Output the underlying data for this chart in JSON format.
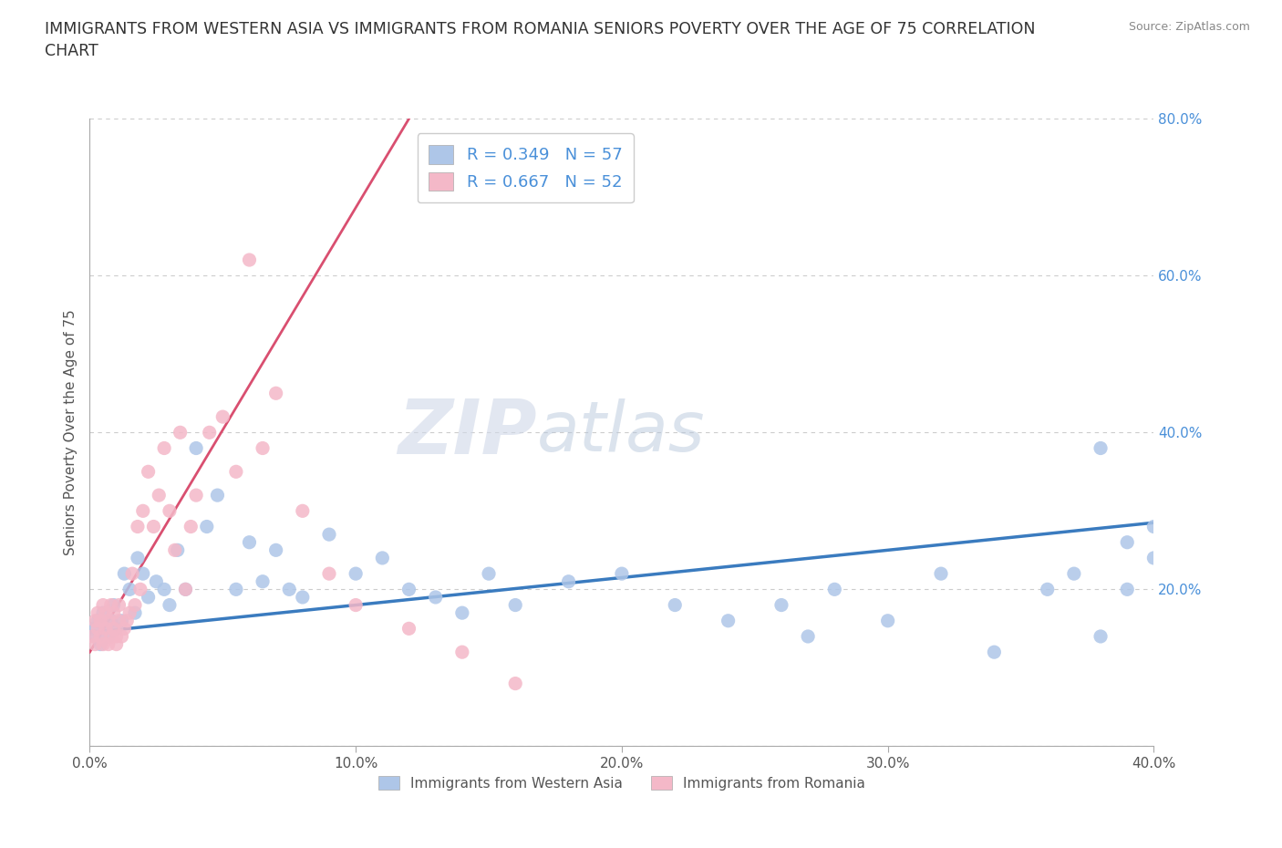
{
  "title": "IMMIGRANTS FROM WESTERN ASIA VS IMMIGRANTS FROM ROMANIA SENIORS POVERTY OVER THE AGE OF 75 CORRELATION\nCHART",
  "ylabel": "Seniors Poverty Over the Age of 75",
  "source": "Source: ZipAtlas.com",
  "watermark_zip": "ZIP",
  "watermark_atlas": "atlas",
  "r_western_asia": 0.349,
  "n_western_asia": 57,
  "r_romania": 0.667,
  "n_romania": 52,
  "xlim": [
    0.0,
    0.4
  ],
  "ylim": [
    0.0,
    0.8
  ],
  "xticks": [
    0.0,
    0.1,
    0.2,
    0.3,
    0.4
  ],
  "xtick_labels": [
    "0.0%",
    "10.0%",
    "20.0%",
    "30.0%",
    "40.0%"
  ],
  "yticks": [
    0.0,
    0.2,
    0.4,
    0.6,
    0.8
  ],
  "ytick_labels": [
    "",
    "20.0%",
    "40.0%",
    "60.0%",
    "80.0%"
  ],
  "color_western_asia": "#aec6e8",
  "color_romania": "#f4b8c8",
  "line_color_western_asia": "#3a7bbf",
  "line_color_romania": "#d94f70",
  "background_color": "#ffffff",
  "grid_color": "#cccccc",
  "tick_color": "#4a90d9",
  "wa_x": [
    0.001,
    0.002,
    0.003,
    0.004,
    0.005,
    0.006,
    0.007,
    0.008,
    0.009,
    0.01,
    0.012,
    0.013,
    0.015,
    0.017,
    0.018,
    0.02,
    0.022,
    0.025,
    0.028,
    0.03,
    0.033,
    0.036,
    0.04,
    0.044,
    0.048,
    0.055,
    0.06,
    0.065,
    0.07,
    0.075,
    0.08,
    0.09,
    0.1,
    0.11,
    0.12,
    0.13,
    0.14,
    0.15,
    0.16,
    0.18,
    0.2,
    0.22,
    0.24,
    0.26,
    0.27,
    0.28,
    0.3,
    0.32,
    0.34,
    0.36,
    0.37,
    0.38,
    0.39,
    0.4,
    0.4,
    0.39,
    0.38
  ],
  "wa_y": [
    0.15,
    0.14,
    0.16,
    0.13,
    0.17,
    0.15,
    0.14,
    0.16,
    0.18,
    0.15,
    0.16,
    0.22,
    0.2,
    0.17,
    0.24,
    0.22,
    0.19,
    0.21,
    0.2,
    0.18,
    0.25,
    0.2,
    0.38,
    0.28,
    0.32,
    0.2,
    0.26,
    0.21,
    0.25,
    0.2,
    0.19,
    0.27,
    0.22,
    0.24,
    0.2,
    0.19,
    0.17,
    0.22,
    0.18,
    0.21,
    0.22,
    0.18,
    0.16,
    0.18,
    0.14,
    0.2,
    0.16,
    0.22,
    0.12,
    0.2,
    0.22,
    0.14,
    0.26,
    0.28,
    0.24,
    0.2,
    0.38
  ],
  "ro_x": [
    0.001,
    0.002,
    0.002,
    0.003,
    0.003,
    0.004,
    0.004,
    0.005,
    0.005,
    0.006,
    0.006,
    0.007,
    0.007,
    0.008,
    0.008,
    0.009,
    0.009,
    0.01,
    0.01,
    0.011,
    0.011,
    0.012,
    0.013,
    0.014,
    0.015,
    0.016,
    0.017,
    0.018,
    0.019,
    0.02,
    0.022,
    0.024,
    0.026,
    0.028,
    0.03,
    0.032,
    0.034,
    0.036,
    0.038,
    0.04,
    0.045,
    0.05,
    0.055,
    0.06,
    0.065,
    0.07,
    0.08,
    0.09,
    0.1,
    0.12,
    0.14,
    0.16
  ],
  "ro_y": [
    0.14,
    0.13,
    0.16,
    0.15,
    0.17,
    0.14,
    0.16,
    0.13,
    0.18,
    0.15,
    0.17,
    0.13,
    0.16,
    0.14,
    0.18,
    0.15,
    0.17,
    0.14,
    0.13,
    0.16,
    0.18,
    0.14,
    0.15,
    0.16,
    0.17,
    0.22,
    0.18,
    0.28,
    0.2,
    0.3,
    0.35,
    0.28,
    0.32,
    0.38,
    0.3,
    0.25,
    0.4,
    0.2,
    0.28,
    0.32,
    0.4,
    0.42,
    0.35,
    0.62,
    0.38,
    0.45,
    0.3,
    0.22,
    0.18,
    0.15,
    0.12,
    0.08
  ],
  "ro_line_x": [
    0.0,
    0.12
  ],
  "ro_line_y": [
    0.12,
    0.8
  ],
  "wa_line_x": [
    0.0,
    0.4
  ],
  "wa_line_y": [
    0.145,
    0.285
  ]
}
